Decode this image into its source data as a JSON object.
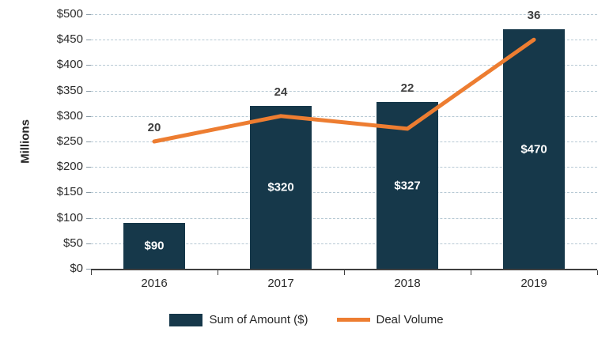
{
  "chart_data": {
    "type": "combo",
    "title": "",
    "ylabel": "Millions",
    "ylim": [
      0,
      500
    ],
    "ytick_step": 50,
    "ytick_labels": [
      "$0",
      "$50",
      "$100",
      "$150",
      "$200",
      "$250",
      "$300",
      "$350",
      "$400",
      "$450",
      "$500"
    ],
    "categories": [
      "2016",
      "2017",
      "2018",
      "2019"
    ],
    "series": [
      {
        "name": "Sum of Amount ($)",
        "type": "bar",
        "values": [
          90,
          320,
          327,
          470
        ],
        "data_labels": [
          "$90",
          "$320",
          "$327",
          "$470"
        ],
        "color": "#16384A"
      },
      {
        "name": "Deal Volume",
        "type": "line",
        "values": [
          20,
          24,
          22,
          36
        ],
        "data_labels": [
          "20",
          "24",
          "22",
          "36"
        ],
        "color": "#ED7D31",
        "axis_scale": 12.5
      }
    ],
    "grid": "horizontal-dashed",
    "grid_color": "#b7c9d4",
    "axis_color": "#404040",
    "legend_position": "bottom"
  },
  "legend": {
    "items": [
      {
        "label": "Sum of Amount ($)",
        "color": "#16384A",
        "swatch": "rect"
      },
      {
        "label": "Deal Volume",
        "color": "#ED7D31",
        "swatch": "line"
      }
    ]
  }
}
